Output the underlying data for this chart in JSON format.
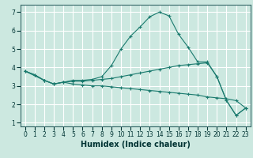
{
  "title": "",
  "xlabel": "Humidex (Indice chaleur)",
  "bg_color": "#cce8e0",
  "grid_color": "#ffffff",
  "line_color": "#1a7a6e",
  "xlim": [
    -0.5,
    23.5
  ],
  "ylim": [
    0.8,
    7.4
  ],
  "xticks": [
    0,
    1,
    2,
    3,
    4,
    5,
    6,
    7,
    8,
    9,
    10,
    11,
    12,
    13,
    14,
    15,
    16,
    17,
    18,
    19,
    20,
    21,
    22,
    23
  ],
  "yticks": [
    1,
    2,
    3,
    4,
    5,
    6,
    7
  ],
  "series": {
    "line1": {
      "x": [
        0,
        1,
        2,
        3,
        4,
        5,
        6,
        7,
        8,
        9,
        10,
        11,
        12,
        13,
        14,
        15,
        16,
        17,
        18,
        19,
        20,
        21,
        22,
        23
      ],
      "y": [
        3.8,
        3.6,
        3.3,
        3.1,
        3.2,
        3.3,
        3.3,
        3.35,
        3.5,
        4.1,
        5.0,
        5.7,
        6.2,
        6.75,
        7.0,
        6.8,
        5.8,
        5.1,
        4.3,
        4.3,
        3.5,
        2.2,
        1.4,
        1.8
      ]
    },
    "line2": {
      "x": [
        0,
        1,
        2,
        3,
        4,
        5,
        6,
        7,
        8,
        9,
        10,
        11,
        12,
        13,
        14,
        15,
        16,
        17,
        18,
        19,
        20,
        21,
        22,
        23
      ],
      "y": [
        3.8,
        3.6,
        3.3,
        3.1,
        3.2,
        3.25,
        3.25,
        3.3,
        3.35,
        3.4,
        3.5,
        3.6,
        3.7,
        3.8,
        3.9,
        4.0,
        4.1,
        4.15,
        4.2,
        4.25,
        3.5,
        2.2,
        1.4,
        1.8
      ]
    },
    "line3": {
      "x": [
        0,
        2,
        3,
        4,
        5,
        6,
        7,
        8,
        9,
        10,
        11,
        12,
        13,
        14,
        15,
        16,
        17,
        18,
        19,
        20,
        21,
        22,
        23
      ],
      "y": [
        3.8,
        3.3,
        3.1,
        3.2,
        3.1,
        3.05,
        3.0,
        3.0,
        2.95,
        2.9,
        2.85,
        2.8,
        2.75,
        2.7,
        2.65,
        2.6,
        2.55,
        2.5,
        2.4,
        2.35,
        2.3,
        2.2,
        1.8
      ]
    }
  },
  "xlabel_fontsize": 7,
  "tick_fontsize": 5.5,
  "spine_color": "#336666"
}
